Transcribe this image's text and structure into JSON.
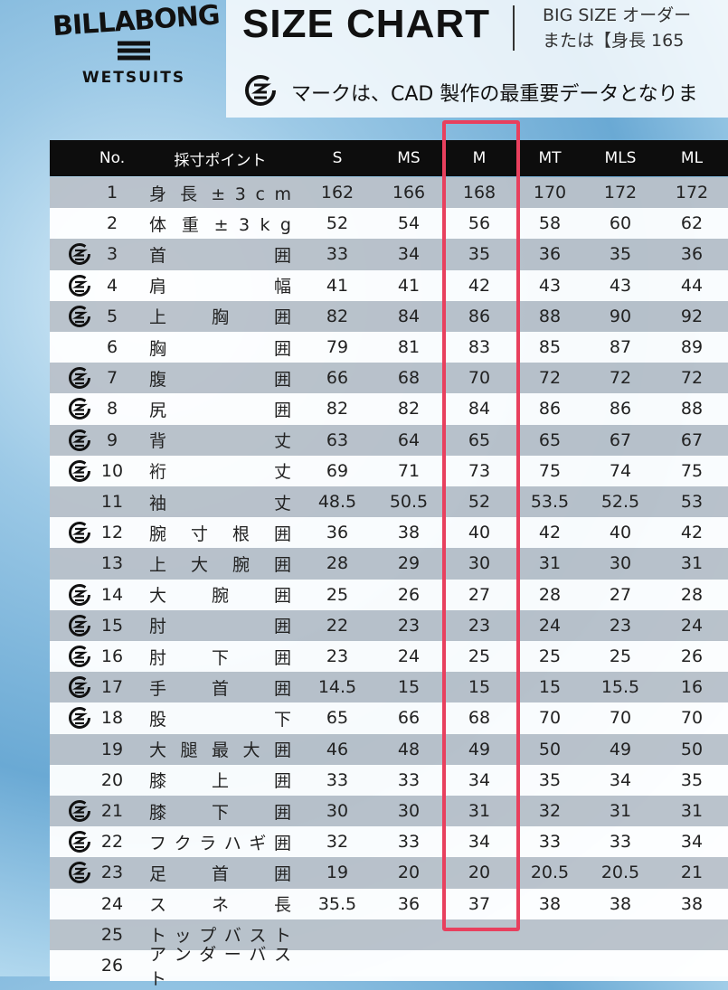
{
  "header": {
    "brand": "BILLABONG",
    "brand_sub": "WETSUITS",
    "title": "SIZE CHART",
    "note_lines": [
      "BIG SIZE オーダー",
      "または【身長 165"
    ],
    "cad_note": "マークは、CAD 製作の最重要データとなりま"
  },
  "table": {
    "columns": [
      "No.",
      "採寸ポイント",
      "S",
      "MS",
      "M",
      "MT",
      "MLS",
      "ML"
    ],
    "rows": [
      {
        "no": 1,
        "point": "身 長 ± 3 c m",
        "cad": false,
        "sizes": [
          162,
          166,
          168,
          170,
          172,
          172
        ]
      },
      {
        "no": 2,
        "point": "体 重 ± 3 k g",
        "cad": false,
        "sizes": [
          52,
          54,
          56,
          58,
          60,
          62
        ]
      },
      {
        "no": 3,
        "point": "首 囲",
        "cad": true,
        "sizes": [
          33,
          34,
          35,
          36,
          35,
          36
        ]
      },
      {
        "no": 4,
        "point": "肩 幅",
        "cad": true,
        "sizes": [
          41,
          41,
          42,
          43,
          43,
          44
        ]
      },
      {
        "no": 5,
        "point": "上 胸 囲",
        "cad": true,
        "sizes": [
          82,
          84,
          86,
          88,
          90,
          92
        ]
      },
      {
        "no": 6,
        "point": "胸 囲",
        "cad": false,
        "sizes": [
          79,
          81,
          83,
          85,
          87,
          89
        ]
      },
      {
        "no": 7,
        "point": "腹 囲",
        "cad": true,
        "sizes": [
          66,
          68,
          70,
          72,
          72,
          72
        ]
      },
      {
        "no": 8,
        "point": "尻 囲",
        "cad": true,
        "sizes": [
          82,
          82,
          84,
          86,
          86,
          88
        ]
      },
      {
        "no": 9,
        "point": "背 丈",
        "cad": true,
        "sizes": [
          63,
          64,
          65,
          65,
          67,
          67
        ]
      },
      {
        "no": 10,
        "point": "裄 丈",
        "cad": true,
        "sizes": [
          69,
          71,
          73,
          75,
          74,
          75
        ]
      },
      {
        "no": 11,
        "point": "袖 丈",
        "cad": false,
        "sizes": [
          48.5,
          50.5,
          52,
          53.5,
          52.5,
          53
        ]
      },
      {
        "no": 12,
        "point": "腕 寸 根 囲",
        "cad": true,
        "sizes": [
          36,
          38,
          40,
          42,
          40,
          42
        ]
      },
      {
        "no": 13,
        "point": "上 大 腕 囲",
        "cad": false,
        "sizes": [
          28,
          29,
          30,
          31,
          30,
          31
        ]
      },
      {
        "no": 14,
        "point": "大 腕 囲",
        "cad": true,
        "sizes": [
          25,
          26,
          27,
          28,
          27,
          28
        ]
      },
      {
        "no": 15,
        "point": "肘 囲",
        "cad": true,
        "sizes": [
          22,
          23,
          23,
          24,
          23,
          24
        ]
      },
      {
        "no": 16,
        "point": "肘 下 囲",
        "cad": true,
        "sizes": [
          23,
          24,
          25,
          25,
          25,
          26
        ]
      },
      {
        "no": 17,
        "point": "手 首 囲",
        "cad": true,
        "sizes": [
          14.5,
          15,
          15,
          15,
          15.5,
          16
        ]
      },
      {
        "no": 18,
        "point": "股 下",
        "cad": true,
        "sizes": [
          65,
          66,
          68,
          70,
          70,
          70
        ]
      },
      {
        "no": 19,
        "point": "大 腿 最 大 囲",
        "cad": false,
        "sizes": [
          46,
          48,
          49,
          50,
          49,
          50
        ]
      },
      {
        "no": 20,
        "point": "膝 上 囲",
        "cad": false,
        "sizes": [
          33,
          33,
          34,
          35,
          34,
          35
        ]
      },
      {
        "no": 21,
        "point": "膝 下 囲",
        "cad": true,
        "sizes": [
          30,
          30,
          31,
          32,
          31,
          31
        ]
      },
      {
        "no": 22,
        "point": "フ ク ラ ハ ギ 囲",
        "cad": true,
        "sizes": [
          32,
          33,
          34,
          33,
          33,
          34
        ]
      },
      {
        "no": 23,
        "point": "足 首 囲",
        "cad": true,
        "sizes": [
          19,
          20,
          20,
          20.5,
          20.5,
          21
        ]
      },
      {
        "no": 24,
        "point": "ス ネ 長",
        "cad": false,
        "sizes": [
          35.5,
          36,
          37,
          38,
          38,
          38
        ]
      },
      {
        "no": 25,
        "point": "ト ッ プ バ ス ト",
        "cad": false,
        "sizes": []
      },
      {
        "no": 26,
        "point": "ア ン ダ ー バ ス ト",
        "cad": false,
        "sizes": []
      }
    ]
  }
}
